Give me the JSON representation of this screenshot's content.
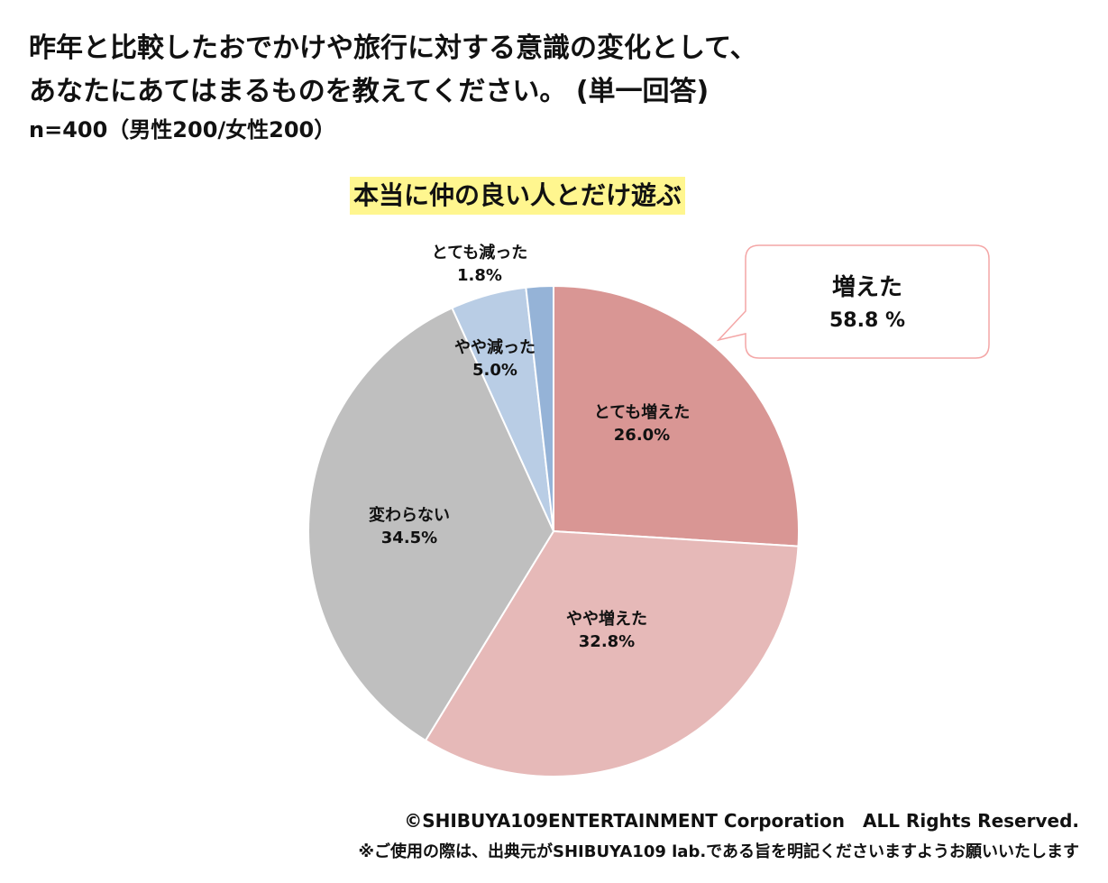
{
  "question": {
    "line1": "昨年と比較したおでかけや旅行に対する意識の変化として、",
    "line2": "あなたにあてはまるものを教えてください。 (単一回答)",
    "sample": "n=400（男性200/女性200）"
  },
  "chart_data": {
    "type": "pie",
    "title": "本当に仲の良い人とだけ遊ぶ",
    "start_angle_deg": 0,
    "direction": "clockwise",
    "slices": [
      {
        "label": "とても増えた",
        "value": 26.0,
        "display": "26.0%",
        "color": "#d99694"
      },
      {
        "label": "やや増えた",
        "value": 32.8,
        "display": "32.8%",
        "color": "#e6b9b8"
      },
      {
        "label": "変わらない",
        "value": 34.5,
        "display": "34.5%",
        "color": "#bfbfbf"
      },
      {
        "label": "やや減った",
        "value": 5.0,
        "display": "5.0%",
        "color": "#b9cde5"
      },
      {
        "label": "とても減った",
        "value": 1.8,
        "display": "1.8%",
        "color": "#95b3d7"
      }
    ],
    "callout": {
      "label": "増えた",
      "value": "58.8 %",
      "border_color": "#f4a6a6"
    }
  },
  "footer": {
    "copyright": "©SHIBUYA109ENTERTAINMENT Corporation　ALL Rights Reserved.",
    "notice": "※ご使用の際は、出典元がSHIBUYA109 lab.である旨を明記くださいますようお願いいたします"
  }
}
